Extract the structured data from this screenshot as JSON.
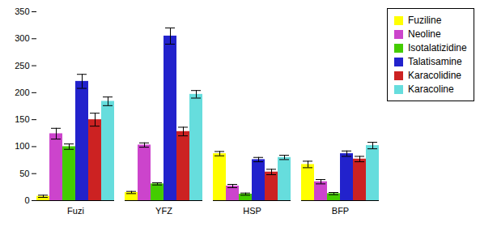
{
  "chart_data": {
    "type": "bar",
    "categories": [
      "Fuzi",
      "YFZ",
      "HSP",
      "BFP"
    ],
    "series": [
      {
        "name": "Fuziline",
        "color": "#FFFF00",
        "values": [
          8,
          15,
          87,
          67
        ],
        "errors": [
          2,
          2,
          4,
          6
        ]
      },
      {
        "name": "Neoline",
        "color": "#CC44CC",
        "values": [
          124,
          103,
          27,
          35
        ],
        "errors": [
          10,
          4,
          3,
          4
        ]
      },
      {
        "name": "Isotalatizidine",
        "color": "#44CC00",
        "values": [
          100,
          31,
          12,
          13
        ],
        "errors": [
          5,
          2,
          2,
          2
        ]
      },
      {
        "name": "Talatisamine",
        "color": "#2222CC",
        "values": [
          221,
          305,
          76,
          87
        ],
        "errors": [
          13,
          15,
          4,
          5
        ]
      },
      {
        "name": "Karacolidine",
        "color": "#CC2222",
        "values": [
          150,
          128,
          53,
          77
        ],
        "errors": [
          12,
          8,
          5,
          5
        ]
      },
      {
        "name": "Karacoline",
        "color": "#66DDDD",
        "values": [
          184,
          197,
          80,
          102
        ],
        "errors": [
          8,
          7,
          4,
          6
        ]
      }
    ],
    "ylim": [
      0,
      350
    ],
    "yticks": [
      0,
      50,
      100,
      150,
      200,
      250,
      300,
      350
    ],
    "grid": false,
    "legend": "right"
  }
}
